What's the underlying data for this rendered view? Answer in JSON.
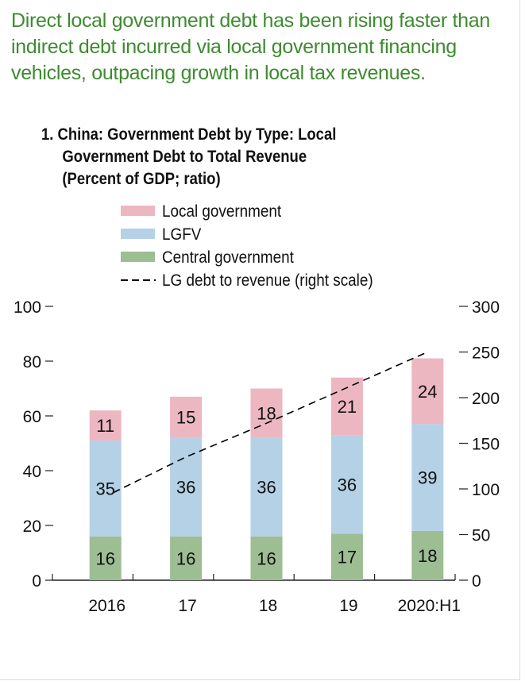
{
  "headline": "Direct local government debt has been rising faster than indirect debt incurred via local government financing vehicles, outpacing growth in local tax revenues.",
  "chart_data": {
    "type": "bar",
    "stacked": true,
    "title_lines": [
      "1. China: Government Debt by Type: Local",
      "Government Debt to Total Revenue",
      "(Percent of GDP; ratio)"
    ],
    "categories": [
      "2016",
      "17",
      "18",
      "19",
      "2020:H1"
    ],
    "series": [
      {
        "name": "Central government",
        "color": "#9dbd93",
        "values": [
          16,
          16,
          16,
          17,
          18
        ]
      },
      {
        "name": "LGFV",
        "color": "#b5d1e6",
        "values": [
          35,
          36,
          36,
          36,
          39
        ]
      },
      {
        "name": "Local government",
        "color": "#ecb7c1",
        "values": [
          11,
          15,
          18,
          21,
          24
        ]
      }
    ],
    "line_series": {
      "name": "LG debt to revenue (right scale)",
      "axis": "right",
      "style": "dashed",
      "values": [
        96,
        135,
        172,
        211,
        250
      ]
    },
    "legend_order": [
      "Local government",
      "LGFV",
      "Central government",
      "LG debt to revenue (right scale)"
    ],
    "legend_placement": "top-center",
    "ylim": [
      0,
      100
    ],
    "yticks": [
      "0",
      "20",
      "40",
      "60",
      "80",
      "100"
    ],
    "y2lim": [
      0,
      300
    ],
    "y2ticks": [
      "0",
      "50",
      "100",
      "150",
      "200",
      "250",
      "300"
    ],
    "grid": false
  }
}
